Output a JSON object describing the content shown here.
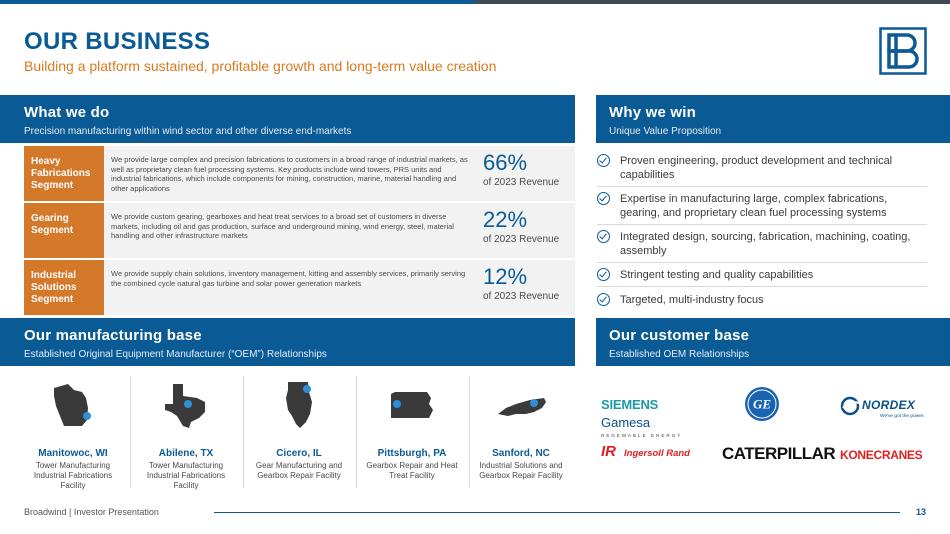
{
  "page": {
    "title": "OUR BUSINESS",
    "subtitle": "Building a platform sustained, profitable growth and long-term value creation"
  },
  "colors": {
    "brand_blue": "#0a5a96",
    "accent_orange": "#d4782a",
    "row_gray": "#f2f2f2"
  },
  "what_we_do": {
    "title": "What we do",
    "subtitle": "Precision manufacturing within wind sector and other diverse end-markets",
    "segments": [
      {
        "label": "Heavy Fabrications Segment",
        "description": "We provide large complex and precision fabrications to customers in a broad range of industrial markets, as well as proprietary clean fuel processing systems. Key products include wind towers, PRS units and industrial fabrications, which include components for mining, construction, marine, material handling and other applications",
        "percent": "66%",
        "revenue_label": "of 2023 Revenue"
      },
      {
        "label": "Gearing Segment",
        "description": "We provide custom gearing, gearboxes and heat treat services to a broad set of customers in diverse markets, including oil and gas production, surface and underground mining, wind energy, steel, material handling and other infrastructure markets",
        "percent": "22%",
        "revenue_label": "of 2023 Revenue"
      },
      {
        "label": "Industrial Solutions Segment",
        "description": "We provide supply chain solutions, inventory management, kitting and assembly services, primarily serving the combined cycle natural gas turbine and solar power generation markets",
        "percent": "12%",
        "revenue_label": "of 2023 Revenue"
      }
    ]
  },
  "why_we_win": {
    "title": "Why we win",
    "subtitle": "Unique Value Proposition",
    "items": [
      "Proven engineering, product development and technical capabilities",
      "Expertise in manufacturing large, complex fabrications, gearing, and proprietary clean fuel processing systems",
      "Integrated design, sourcing, fabrication, machining, coating, assembly",
      "Stringent testing and quality capabilities",
      "Targeted, multi-industry focus"
    ]
  },
  "manufacturing_base": {
    "title": "Our manufacturing base",
    "subtitle": "Established Original Equipment Manufacturer (“OEM”) Relationships",
    "locations": [
      {
        "name": "Manitowoc, WI",
        "description": "Tower Manufacturing Industrial Fabrications Facility",
        "map_icon": "wisconsin-map-icon"
      },
      {
        "name": "Abilene, TX",
        "description": "Tower Manufacturing Industrial Fabrications Facility",
        "map_icon": "texas-map-icon"
      },
      {
        "name": "Cicero, IL",
        "description": "Gear Manufacturing and Gearbox Repair Facility",
        "map_icon": "illinois-map-icon"
      },
      {
        "name": "Pittsburgh, PA",
        "description": "Gearbox Repair and Heat Treat Facility",
        "map_icon": "pennsylvania-map-icon"
      },
      {
        "name": "Sanford, NC",
        "description": "Industrial Solutions and Gearbox Repair Facility",
        "map_icon": "north-carolina-map-icon"
      }
    ]
  },
  "customer_base": {
    "title": "Our customer base",
    "subtitle": "Established OEM Relationships",
    "logos": {
      "siemens_word1": "SIEMENS",
      "siemens_word2": "Gamesa",
      "siemens_tag": "RENEWABLE ENERGY",
      "ge_mark": "GE",
      "nordex_word": "NORDEX",
      "nordex_tag": "We've got the power.",
      "ir_badge": "IR",
      "ir_word": "Ingersoll Rand",
      "cat_word": "CATERPILLAR",
      "kone_word": "KONECRANES"
    }
  },
  "footer": {
    "text": "Broadwind | Investor Presentation",
    "page_number": "13"
  }
}
